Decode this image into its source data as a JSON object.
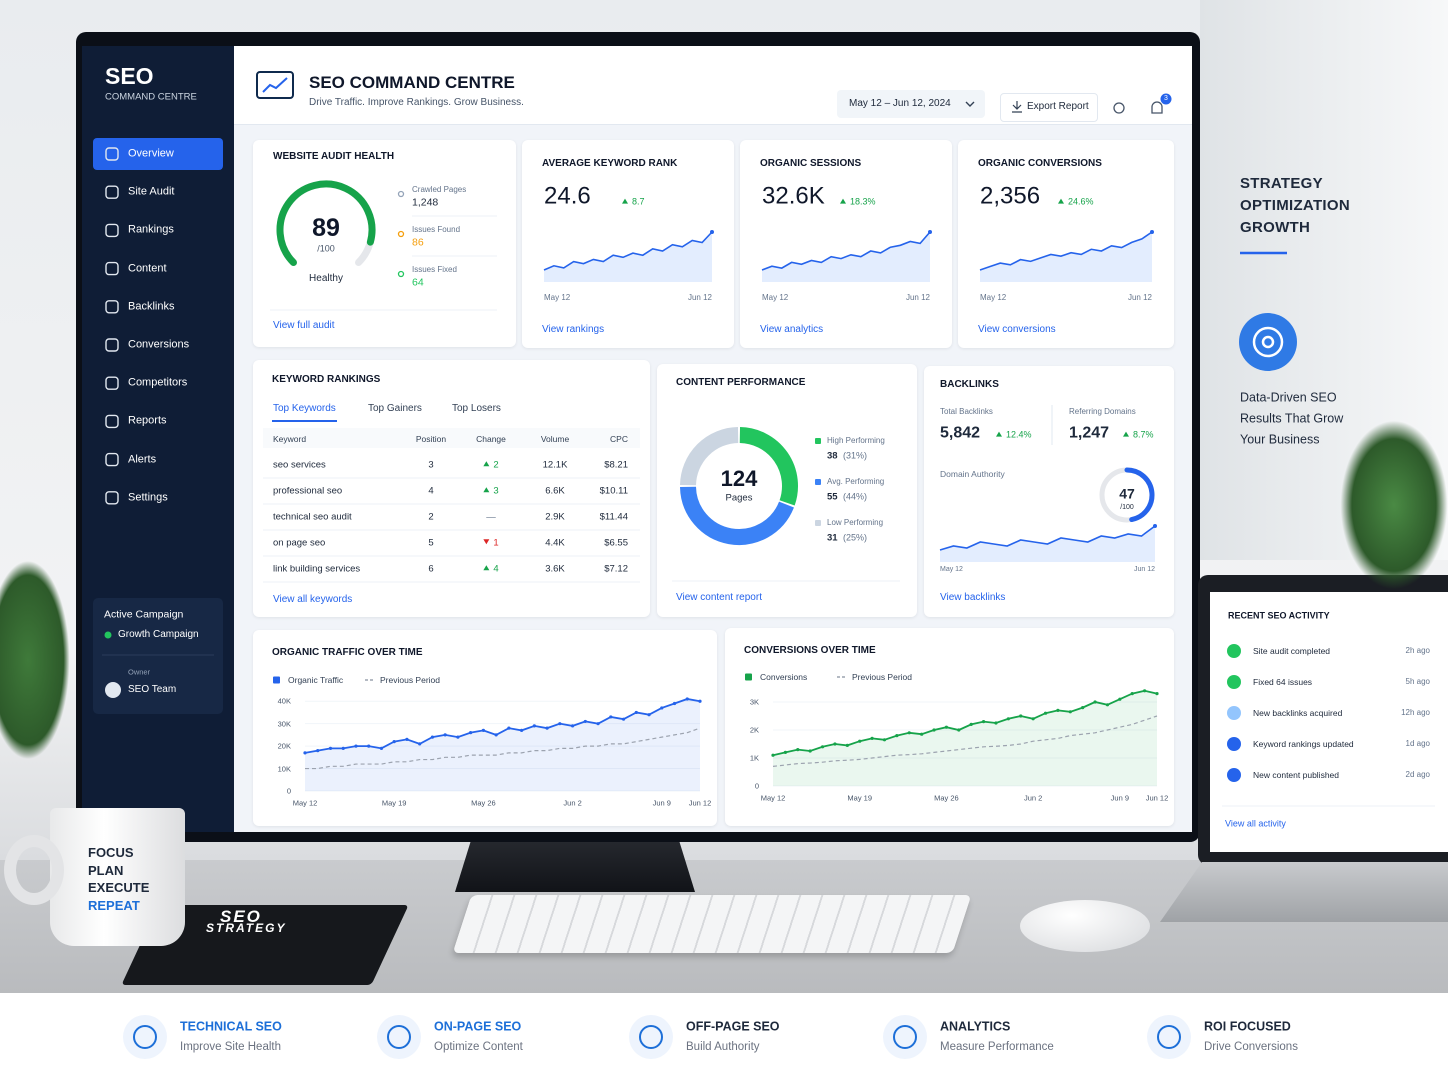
{
  "sidebar": {
    "brand": "SEO",
    "brand_sub": "COMMAND CENTRE",
    "nav": [
      "Overview",
      "Site Audit",
      "Rankings",
      "Content",
      "Backlinks",
      "Conversions",
      "Competitors",
      "Reports",
      "Alerts",
      "Settings"
    ],
    "campaign_label": "Active Campaign",
    "campaign": "Growth Campaign",
    "owner_label": "Owner",
    "owner": "SEO Team"
  },
  "header": {
    "title": "SEO COMMAND CENTRE",
    "subtitle": "Drive Traffic. Improve Rankings. Grow Business.",
    "date_range": "May 12 – Jun 12, 2024",
    "export": "Export Report",
    "notifications": "3"
  },
  "audit": {
    "title": "WEBSITE AUDIT HEALTH",
    "score": 89,
    "max": {
      "value": 100,
      "label": "/100"
    },
    "status": "Healthy",
    "stats": [
      {
        "label": "Crawled Pages",
        "value": "1,248",
        "color": "#94a3b8"
      },
      {
        "label": "Issues Found",
        "value": "86",
        "color": "#f59e0b"
      },
      {
        "label": "Issues Fixed",
        "value": "64",
        "color": "#22c55e"
      }
    ],
    "link": "View full audit"
  },
  "kpis": [
    {
      "title": "AVERAGE KEYWORD RANK",
      "value": "24.6",
      "change": "8.7",
      "start": "May 12",
      "end": "Jun 12",
      "link": "View rankings",
      "trend": [
        10,
        12,
        11,
        14,
        13,
        15,
        14,
        17,
        16,
        18,
        17,
        20,
        19,
        22,
        21,
        24,
        23,
        28
      ]
    },
    {
      "title": "ORGANIC SESSIONS",
      "value": "32.6K",
      "change": "18.3%",
      "start": "May 12",
      "end": "Jun 12",
      "link": "View analytics",
      "trend": [
        9,
        11,
        10,
        13,
        12,
        14,
        13,
        16,
        15,
        17,
        16,
        19,
        18,
        21,
        22,
        24,
        23,
        29
      ]
    },
    {
      "title": "ORGANIC CONVERSIONS",
      "value": "2,356",
      "change": "24.6%",
      "start": "May 12",
      "end": "Jun 12",
      "link": "View conversions",
      "trend": [
        8,
        10,
        12,
        11,
        14,
        13,
        15,
        17,
        16,
        18,
        17,
        20,
        19,
        22,
        21,
        24,
        26,
        30
      ]
    }
  ],
  "keywords": {
    "title": "KEYWORD RANKINGS",
    "tabs": [
      "Top Keywords",
      "Top Gainers",
      "Top Losers"
    ],
    "columns": [
      "Keyword",
      "Position",
      "Change",
      "Volume",
      "CPC"
    ],
    "rows": [
      [
        "seo services",
        "3",
        "2",
        "12.1K",
        "$8.21"
      ],
      [
        "professional seo",
        "4",
        "3",
        "6.6K",
        "$10.11"
      ],
      [
        "technical seo audit",
        "2",
        "—",
        "2.9K",
        "$11.44"
      ],
      [
        "on page seo",
        "5",
        "1",
        "4.4K",
        "$6.55"
      ],
      [
        "link building services",
        "6",
        "4",
        "3.6K",
        "$7.12"
      ]
    ],
    "change_direction": [
      "up",
      "up",
      "none",
      "down",
      "up"
    ],
    "link": "View all keywords"
  },
  "content": {
    "title": "CONTENT PERFORMANCE",
    "total": "124",
    "total_label": "Pages",
    "segments": [
      {
        "name": "High Performing",
        "value": 38,
        "percent": "(31%)",
        "color": "#22c55e"
      },
      {
        "name": "Avg. Performing",
        "value": 55,
        "percent": "(44%)",
        "color": "#3b82f6"
      },
      {
        "name": "Low Performing",
        "value": 31,
        "percent": "(25%)",
        "color": "#cbd5e1"
      }
    ],
    "link": "View content report"
  },
  "backlinks": {
    "title": "BACKLINKS",
    "total_label": "Total Backlinks",
    "total": "5,842",
    "total_change": "12.4%",
    "domains_label": "Referring Domains",
    "domains": "1,247",
    "domains_change": "8.7%",
    "da_label": "Domain Authority",
    "da": 47,
    "da_max": {
      "value": 100,
      "label": "/100"
    },
    "start": "May 12",
    "end": "Jun 12",
    "trend": [
      10,
      12,
      11,
      14,
      13,
      12,
      15,
      14,
      13,
      16,
      15,
      14,
      17,
      16,
      18,
      17,
      22
    ],
    "link": "View backlinks"
  },
  "organic_chart": {
    "type": "line",
    "title": "ORGANIC TRAFFIC OVER TIME",
    "categories": [
      "May 12",
      null,
      null,
      null,
      null,
      null,
      null,
      "May 19",
      null,
      null,
      null,
      null,
      null,
      null,
      "May 26",
      null,
      null,
      null,
      null,
      null,
      null,
      "Jun 2",
      null,
      null,
      null,
      null,
      null,
      null,
      "Jun 9",
      null,
      null,
      "Jun 12"
    ],
    "series": [
      {
        "name": "Organic Traffic",
        "color": "#2563eb",
        "area": true,
        "values": [
          17000,
          18000,
          19000,
          19000,
          20000,
          20000,
          19000,
          22000,
          23000,
          21000,
          24000,
          25000,
          24000,
          26000,
          27000,
          25000,
          28000,
          27000,
          29000,
          28000,
          30000,
          29000,
          31000,
          30000,
          33000,
          32000,
          35000,
          34000,
          37000,
          39000,
          41000,
          40000
        ]
      },
      {
        "name": "Previous Period",
        "color": "#9ca3af",
        "dash": true,
        "values": [
          10000,
          10000,
          11000,
          11000,
          12000,
          12000,
          12000,
          13000,
          13000,
          14000,
          14000,
          15000,
          15000,
          16000,
          16000,
          16000,
          17000,
          17000,
          18000,
          18000,
          19000,
          19000,
          20000,
          20000,
          21000,
          21000,
          22000,
          23000,
          24000,
          25000,
          26000,
          28000
        ]
      }
    ],
    "ylim": [
      0,
      45000
    ],
    "yticks": [
      0,
      {
        "value": 10000,
        "label": "10K"
      },
      {
        "value": 20000,
        "label": "20K"
      },
      {
        "value": 30000,
        "label": "30K"
      },
      {
        "value": 40000,
        "label": "40K"
      }
    ],
    "grid": true
  },
  "conversions_chart": {
    "type": "line",
    "title": "CONVERSIONS OVER TIME",
    "categories": [
      "May 12",
      null,
      null,
      null,
      null,
      null,
      null,
      "May 19",
      null,
      null,
      null,
      null,
      null,
      null,
      "May 26",
      null,
      null,
      null,
      null,
      null,
      null,
      "Jun 2",
      null,
      null,
      null,
      null,
      null,
      null,
      "Jun 9",
      null,
      null,
      "Jun 12"
    ],
    "series": [
      {
        "name": "Conversions",
        "color": "#16a34a",
        "area": true,
        "values": [
          1100,
          1200,
          1300,
          1250,
          1400,
          1500,
          1450,
          1600,
          1700,
          1650,
          1800,
          1900,
          1850,
          2000,
          2100,
          2000,
          2200,
          2300,
          2250,
          2400,
          2500,
          2400,
          2600,
          2700,
          2650,
          2800,
          3000,
          2900,
          3100,
          3300,
          3400,
          3300
        ]
      },
      {
        "name": "Previous Period",
        "color": "#9ca3af",
        "dash": true,
        "values": [
          700,
          750,
          800,
          820,
          850,
          900,
          920,
          950,
          1000,
          1050,
          1100,
          1120,
          1150,
          1200,
          1250,
          1300,
          1350,
          1400,
          1420,
          1450,
          1500,
          1600,
          1650,
          1700,
          1800,
          1850,
          1900,
          2000,
          2100,
          2200,
          2350,
          2500
        ]
      }
    ],
    "ylim": [
      0,
      3500
    ],
    "yticks": [
      0,
      {
        "value": 1000,
        "label": "1K"
      },
      {
        "value": 2000,
        "label": "2K"
      },
      {
        "value": 3000,
        "label": "3K"
      }
    ],
    "grid": true
  },
  "activity": {
    "title": "RECENT SEO ACTIVITY",
    "items": [
      {
        "text": "Site audit completed",
        "time": "2h ago",
        "color": "#22c55e"
      },
      {
        "text": "Fixed 64 issues",
        "time": "5h ago",
        "color": "#22c55e"
      },
      {
        "text": "New backlinks acquired",
        "time": "12h ago",
        "color": "#93c5fd"
      },
      {
        "text": "Keyword rankings updated",
        "time": "1d ago",
        "color": "#2563eb"
      },
      {
        "text": "New content published",
        "time": "2d ago",
        "color": "#2563eb"
      }
    ],
    "link": "View all activity"
  },
  "promo": {
    "heading": [
      "STRATEGY",
      "OPTIMIZATION",
      "GROWTH"
    ],
    "tagline": [
      "Data-Driven SEO",
      "Results That Grow",
      "Your Business"
    ]
  },
  "mug": [
    "FOCUS",
    "PLAN",
    "EXECUTE",
    "REPEAT"
  ],
  "notebook": [
    "SEO",
    "STRATEGY"
  ],
  "features": [
    {
      "title": "TECHNICAL SEO",
      "subtitle": "Improve Site Health",
      "color": "#1d6fd8"
    },
    {
      "title": "ON-PAGE SEO",
      "subtitle": "Optimize Content",
      "color": "#1d6fd8"
    },
    {
      "title": "OFF-PAGE SEO",
      "subtitle": "Build Authority",
      "color": "#1e293b"
    },
    {
      "title": "ANALYTICS",
      "subtitle": "Measure Performance",
      "color": "#1e293b"
    },
    {
      "title": "ROI FOCUSED",
      "subtitle": "Drive Conversions",
      "color": "#1e293b"
    }
  ]
}
